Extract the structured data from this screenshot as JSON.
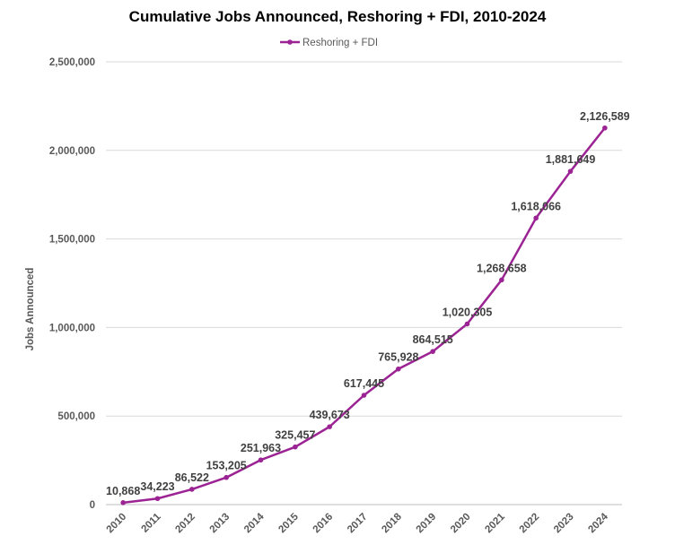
{
  "chart_data": {
    "type": "line",
    "title": "Cumulative Jobs Announced, Reshoring + FDI, 2010-2024",
    "xlabel": "",
    "ylabel": "Jobs Announced",
    "categories": [
      "2010",
      "2011",
      "2012",
      "2013",
      "2014",
      "2015",
      "2016",
      "2017",
      "2018",
      "2019",
      "2020",
      "2021",
      "2022",
      "2023",
      "2024"
    ],
    "series": [
      {
        "name": "Reshoring + FDI",
        "color": "#9B2393",
        "values": [
          10868,
          34223,
          86522,
          153205,
          251963,
          325457,
          439673,
          617445,
          765928,
          864515,
          1020305,
          1268658,
          1618066,
          1881649,
          2126589
        ],
        "labels": [
          "10,868",
          "34,223",
          "86,522",
          "153,205",
          "251,963",
          "325,457",
          "439,673",
          "617,445",
          "765,928",
          "864,515",
          "1,020,305",
          "1,268,658",
          "1,618,066",
          "1,881,649",
          "2,126,589"
        ]
      }
    ],
    "ylim": [
      0,
      2500000
    ],
    "yticks": [
      0,
      500000,
      1000000,
      1500000,
      2000000,
      2500000
    ],
    "ytick_labels": [
      "0",
      "500,000",
      "1,000,000",
      "1,500,000",
      "2,000,000",
      "2,500,000"
    ],
    "grid": true,
    "legend_position": "top"
  }
}
